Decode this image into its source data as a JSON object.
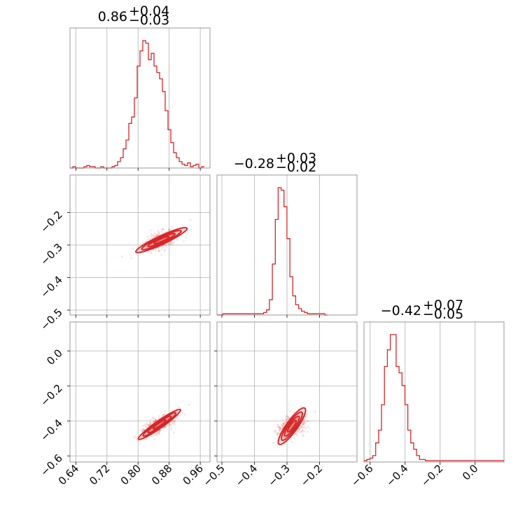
{
  "chart_data": {
    "type": "corner",
    "color": "#d62728",
    "parameters": [
      {
        "title_value": "0.86",
        "title_plus": "+0.04",
        "title_minus": "−0.03",
        "range": [
          0.625,
          0.985
        ],
        "ticks": [
          0.64,
          0.72,
          0.8,
          0.88,
          0.96
        ],
        "tick_labels": [
          "0.64",
          "0.72",
          "0.80",
          "0.88",
          "0.96"
        ]
      },
      {
        "title_value": "−0.28",
        "title_plus": "+0.03",
        "title_minus": "−0.02",
        "range": [
          -0.515,
          -0.085
        ],
        "ticks": [
          -0.5,
          -0.4,
          -0.3,
          -0.2
        ],
        "tick_labels": [
          "−0.5",
          "−0.4",
          "−0.3",
          "−0.2"
        ]
      },
      {
        "title_value": "−0.42",
        "title_plus": "+0.07",
        "title_minus": "−0.05",
        "range": [
          -0.635,
          0.165
        ],
        "ticks": [
          -0.6,
          -0.4,
          -0.2,
          0.0
        ],
        "tick_labels": [
          "−0.6",
          "−0.4",
          "−0.2",
          "0.0"
        ]
      }
    ],
    "row_ticks": {
      "1": {
        "ticks": [
          -0.2,
          -0.3,
          -0.4,
          -0.5
        ],
        "tick_labels": [
          "−0.2",
          "−0.3",
          "−0.4",
          "−0.5"
        ],
        "range": [
          -0.515,
          -0.085
        ]
      },
      "2": {
        "ticks": [
          0.0,
          -0.2,
          -0.4,
          -0.6
        ],
        "tick_labels": [
          "0.0",
          "−0.2",
          "−0.4",
          "−0.6"
        ],
        "range": [
          -0.635,
          0.165
        ]
      }
    },
    "histograms": [
      {
        "bin_start": 0.625,
        "bin_width": 0.0072,
        "counts": [
          0,
          1,
          0,
          0,
          0,
          1,
          2,
          1,
          1,
          0,
          0,
          1,
          0,
          0,
          0,
          1,
          2,
          5,
          8,
          15,
          22,
          35,
          40,
          55,
          80,
          92,
          100,
          98,
          85,
          90,
          80,
          75,
          70,
          60,
          45,
          30,
          20,
          12,
          8,
          5,
          3,
          2,
          4,
          1,
          2,
          3,
          0,
          1
        ]
      },
      {
        "bin_start": -0.515,
        "bin_width": 0.00895,
        "counts": [
          0,
          0,
          1,
          1,
          1,
          1,
          1,
          1,
          1,
          1,
          1,
          1,
          1,
          1,
          1,
          1,
          2,
          4,
          12,
          40,
          75,
          100,
          98,
          85,
          60,
          30,
          15,
          8,
          5,
          3,
          2,
          1,
          1,
          1,
          1,
          1,
          1,
          0
        ]
      },
      {
        "bin_start": -0.635,
        "bin_width": 0.0167,
        "counts": [
          1,
          2,
          3,
          5,
          15,
          25,
          45,
          75,
          88,
          100,
          100,
          75,
          70,
          60,
          45,
          25,
          15,
          10,
          5,
          2,
          2,
          1,
          1,
          1,
          1,
          1,
          1,
          1,
          1,
          1,
          1,
          1,
          1,
          1,
          1,
          1,
          1,
          1,
          1,
          1,
          1,
          1,
          1,
          1,
          1,
          1,
          1,
          1
        ]
      }
    ],
    "scatter_pairs": [
      {
        "row": 1,
        "col": 0,
        "center": [
          0.86,
          -0.285
        ],
        "direction": [
          0.09,
          0.05
        ],
        "spread": 0.012,
        "contours": [
          {
            "a": 0.075,
            "b": 0.012
          },
          {
            "a": 0.058,
            "b": 0.009
          },
          {
            "a": 0.04,
            "b": 0.006
          },
          {
            "a": 0.022,
            "b": 0.004
          }
        ]
      },
      {
        "row": 2,
        "col": 0,
        "center": [
          0.855,
          -0.42
        ],
        "direction": [
          0.09,
          0.14
        ],
        "spread": 0.014,
        "contours": [
          {
            "a": 0.1,
            "b": 0.013
          },
          {
            "a": 0.078,
            "b": 0.01
          },
          {
            "a": 0.055,
            "b": 0.008
          },
          {
            "a": 0.03,
            "b": 0.005
          }
        ]
      },
      {
        "row": 2,
        "col": 1,
        "center": [
          -0.285,
          -0.43
        ],
        "direction": [
          0.05,
          0.13
        ],
        "spread": 0.018,
        "contours": [
          {
            "a": 0.11,
            "b": 0.022
          },
          {
            "a": 0.085,
            "b": 0.017
          },
          {
            "a": 0.06,
            "b": 0.012
          },
          {
            "a": 0.035,
            "b": 0.007
          }
        ]
      }
    ],
    "grid": true
  }
}
